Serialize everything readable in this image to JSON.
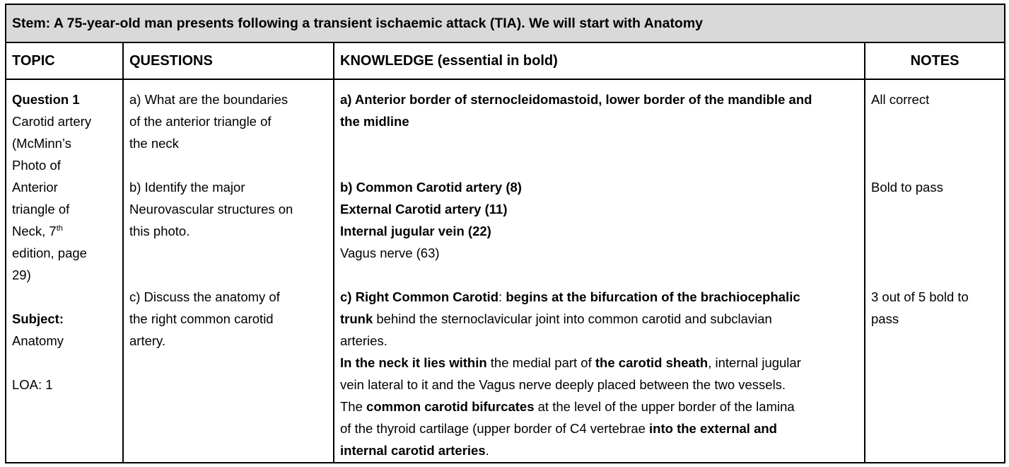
{
  "stem": "Stem: A 75-year-old man presents following a transient ischaemic attack (TIA). We will start with Anatomy",
  "headers": {
    "topic": "TOPIC",
    "questions": "QUESTIONS",
    "knowledge": "KNOWLEDGE (essential in bold)",
    "notes": "NOTES"
  },
  "topic": {
    "question_label": "Question 1",
    "lines": [
      "Carotid artery",
      "(McMinn’s",
      "Photo of",
      "Anterior",
      "triangle of"
    ],
    "neck_prefix": "Neck, 7",
    "neck_sup": "th",
    "edition_lines": [
      "edition, page",
      "29)"
    ],
    "subject_label": "Subject:",
    "subject_value": "Anatomy",
    "loa": "LOA: 1"
  },
  "questions": {
    "a": [
      "a) What are the boundaries",
      "of the anterior triangle of",
      "the neck"
    ],
    "b": [
      "b) Identify the major",
      "Neurovascular structures on",
      "this photo."
    ],
    "c": [
      "c) Discuss the anatomy of",
      "the right common carotid",
      "artery."
    ]
  },
  "knowledge": {
    "a": [
      "a) Anterior border of sternocleidomastoid, lower border of the mandible and",
      "the midline"
    ],
    "b_bold": [
      "b) Common Carotid artery (8)",
      "External Carotid artery (11)",
      "Internal jugular vein (22)"
    ],
    "b_normal": "Vagus nerve (63)",
    "c": {
      "l1_b1": "c) Right Common Carotid",
      "l1_t1": ": ",
      "l1_b2": "begins at the bifurcation of the brachiocephalic",
      "l2_b1": "trunk",
      "l2_t1": " behind the sternoclavicular joint into common carotid and subclavian",
      "l3_t1": "arteries.",
      "l4_b1": "In the neck it lies within",
      "l4_t1": " the medial part of ",
      "l4_b2": "the carotid sheath",
      "l4_t2": ", internal jugular",
      "l5_t1": "vein lateral to it and the Vagus nerve deeply placed between the two vessels.",
      "l6_t1": "The ",
      "l6_b1": "common carotid bifurcates",
      "l6_t2": " at the level of the upper border of the lamina",
      "l7_t1": "of the thyroid cartilage (upper border of C4 vertebrae ",
      "l7_b1": "into the external and",
      "l8_b1": "internal carotid arteries",
      "l8_t1": "."
    }
  },
  "notes": {
    "a": "All correct",
    "b": "Bold to pass",
    "c": [
      "3 out of 5 bold to",
      "pass"
    ]
  }
}
